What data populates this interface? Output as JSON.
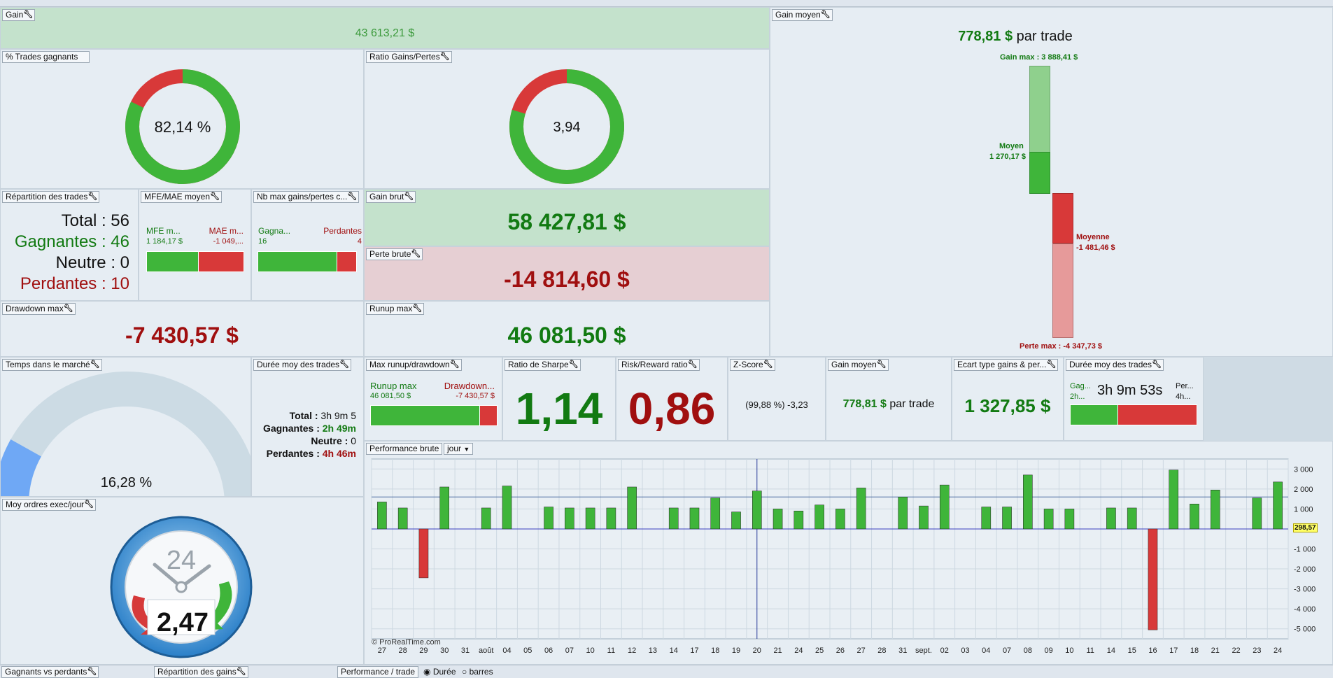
{
  "gain": {
    "title": "Gain",
    "value": "43 613,21 $"
  },
  "gain_moyen_top": {
    "title": "Gain moyen",
    "value": "778,81 $",
    "suffix": "par trade",
    "gain_max": "Gain max : 3 888,41 $",
    "moyen_label": "Moyen",
    "moyen_value": "1 270,17 $",
    "moyenne_label": "Moyenne",
    "moyenne_value": "-1 481,46 $",
    "perte_max": "Perte max : -4 347,73 $"
  },
  "trades_gagnants": {
    "title": "% Trades gagnants",
    "value": "82,14 %",
    "ratio": 0.8214
  },
  "ratio_gains_pertes": {
    "title": "Ratio Gains/Pertes",
    "value": "3,94",
    "ratio": 0.7976
  },
  "repartition": {
    "title": "Répartition des trades",
    "total": "Total : 56",
    "gagnantes": "Gagnantes : 46",
    "neutre": "Neutre : 0",
    "perdantes": "Perdantes : 10"
  },
  "mfe_mae": {
    "title": "MFE/MAE moyen",
    "mfe_label": "MFE m...",
    "mfe_value": "1 184,17 $",
    "mae_label": "MAE m...",
    "mae_value": "-1 049,...",
    "ratio": 0.53
  },
  "nb_max": {
    "title": "Nb max gains/pertes c...",
    "gagnants_label": "Gagna...",
    "gagnants_value": "16",
    "perdantes_label": "Perdantes",
    "perdantes_value": "4",
    "ratio": 0.8
  },
  "gain_brut": {
    "title": "Gain brut",
    "value": "58 427,81 $"
  },
  "perte_brute": {
    "title": "Perte brute",
    "value": "-14 814,60 $"
  },
  "drawdown_max": {
    "title": "Drawdown max",
    "value": "-7 430,57 $"
  },
  "runup_max": {
    "title": "Runup max",
    "value": "46 081,50 $"
  },
  "temps_marche": {
    "title": "Temps dans le marché",
    "value": "16,28 %",
    "ratio": 0.1628
  },
  "duree_moy": {
    "title": "Durée moy des trades",
    "total_label": "Total : ",
    "total_value": "3h 9m 5",
    "gagnantes_label": "Gagnantes : ",
    "gagnantes_value": "2h 49m",
    "neutre_label": "Neutre : ",
    "neutre_value": "0",
    "perdantes_label": "Perdantes : ",
    "perdantes_value": "4h 46m"
  },
  "max_runup_dd": {
    "title": "Max runup/drawdown",
    "runup_label": "Runup max",
    "runup_value": "46 081,50 $",
    "dd_label": "Drawdown...",
    "dd_value": "-7 430,57 $",
    "ratio": 0.86
  },
  "sharpe": {
    "title": "Ratio de Sharpe",
    "value": "1,14"
  },
  "risk_reward": {
    "title": "Risk/Reward ratio",
    "value": "0,86"
  },
  "zscore": {
    "title": "Z-Score",
    "value": "(99,88 %) -3,23"
  },
  "gain_moyen_small": {
    "title": "Gain moyen",
    "value": "778,81 $",
    "suffix": "par trade"
  },
  "ecart_type": {
    "title": "Ecart type gains & per...",
    "value": "1 327,85 $"
  },
  "duree_moy2": {
    "title": "Durée moy des trades",
    "gag_label": "Gag...",
    "gag_value": "2h...",
    "center": "3h 9m 53s",
    "per_label": "Per...",
    "per_value": "4h...",
    "ratio": 0.37
  },
  "moy_ordres": {
    "title": "Moy ordres exec/jour",
    "value": "2,47",
    "clock_label": "24"
  },
  "perf_brute": {
    "title": "Performance brute",
    "select": "jour",
    "watermark": "© ProRealTime.com",
    "last_value": "298,57"
  },
  "bottom": {
    "t1": "Gagnants vs perdants",
    "t2": "Répartition des gains",
    "t3": "Performance / trade",
    "opt1": "Durée",
    "opt2": "barres"
  },
  "chart_data": {
    "type": "bar",
    "title": "Performance brute",
    "categories": [
      "27",
      "28",
      "29",
      "30",
      "31",
      "août",
      "04",
      "05",
      "06",
      "07",
      "10",
      "11",
      "12",
      "13",
      "14",
      "17",
      "18",
      "19",
      "20",
      "21",
      "24",
      "25",
      "26",
      "27",
      "28",
      "31",
      "sept.",
      "02",
      "03",
      "04",
      "07",
      "08",
      "09",
      "10",
      "11",
      "14",
      "15",
      "16",
      "17",
      "18",
      "21",
      "22",
      "23",
      "24"
    ],
    "values": [
      1350,
      1050,
      -2450,
      2100,
      0,
      1050,
      2150,
      0,
      1100,
      1050,
      1050,
      1050,
      2100,
      0,
      1050,
      1050,
      1550,
      850,
      1900,
      1000,
      900,
      1200,
      1000,
      2050,
      0,
      1600,
      1150,
      2200,
      0,
      1100,
      1100,
      2700,
      1000,
      1000,
      0,
      1050,
      1050,
      -5050,
      2950,
      1250,
      1950,
      0,
      1550,
      2350
    ],
    "ylim": [
      -5500,
      3500
    ],
    "yticks": [
      "3 000",
      "2 000",
      "1 000",
      "0",
      "-1 000",
      "-2 000",
      "-3 000",
      "-4 000",
      "-5 000"
    ],
    "ytick_values": [
      3000,
      2000,
      1000,
      0,
      -1000,
      -2000,
      -3000,
      -4000,
      -5000
    ],
    "avg_line": 1600,
    "colors": {
      "pos": "#3fb53a",
      "neg": "#d83939"
    }
  }
}
